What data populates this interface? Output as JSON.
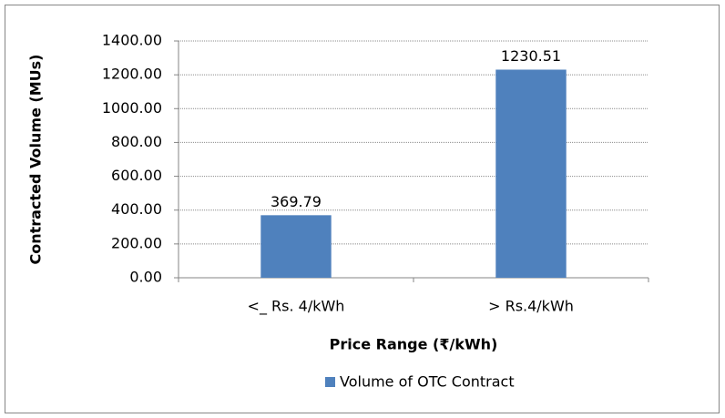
{
  "chart_data": {
    "type": "bar",
    "x_label": "Price Range (₹/kWh)",
    "y_label": "Contracted Volume (MUs)",
    "categories": [
      "<_ Rs. 4/kWh",
      "> Rs.4/kWh"
    ],
    "series": [
      {
        "name": "Volume of OTC  Contract",
        "color": "#4f81bd",
        "values": [
          369.79,
          1230.51
        ]
      }
    ],
    "ylim": [
      0,
      1400
    ],
    "yticks": [
      {
        "value": 0,
        "label": "0.00"
      },
      {
        "value": 200,
        "label": "200.00"
      },
      {
        "value": 400,
        "label": "400.00"
      },
      {
        "value": 600,
        "label": "600.00"
      },
      {
        "value": 800,
        "label": "800.00"
      },
      {
        "value": 1000,
        "label": "1000.00"
      },
      {
        "value": 1200,
        "label": "1200.00"
      },
      {
        "value": 1400,
        "label": "1400.00"
      }
    ],
    "grid": true,
    "legend": "bottom"
  }
}
